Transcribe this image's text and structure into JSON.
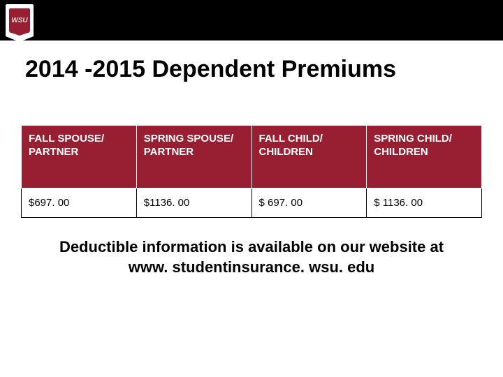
{
  "header": {
    "logo_text": "WSU"
  },
  "title": "2014 -2015 Dependent Premiums",
  "table": {
    "columns": [
      "FALL SPOUSE/ PARTNER",
      "SPRING SPOUSE/ PARTNER",
      "FALL CHILD/ CHILDREN",
      "SPRING CHILD/ CHILDREN"
    ],
    "rows": [
      [
        "$697. 00",
        " $1136. 00",
        "$ 697. 00",
        "$ 1136. 00"
      ]
    ],
    "header_bg": "#981e32",
    "header_fg": "#ffffff",
    "cell_bg": "#ffffff",
    "cell_fg": "#000000",
    "header_fontsize": 15,
    "cell_fontsize": 15
  },
  "note": "Deductible information is available on our website at www. studentinsurance. wsu. edu",
  "colors": {
    "brand": "#981e32",
    "topbar": "#000000",
    "page_bg": "#ffffff"
  }
}
